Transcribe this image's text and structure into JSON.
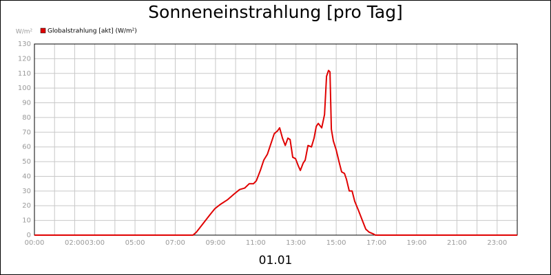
{
  "chart_data": {
    "type": "line",
    "title": "Sonneneinstrahlung [pro Tag]",
    "y_label": "W/m²",
    "x_label": "01.01",
    "x": [
      0,
      7.6,
      7.88,
      8.05,
      8.39,
      8.73,
      8.97,
      9.25,
      9.59,
      9.93,
      10.2,
      10.45,
      10.68,
      10.89,
      11.03,
      11.23,
      11.4,
      11.58,
      11.75,
      11.92,
      12.09,
      12.19,
      12.33,
      12.47,
      12.6,
      12.71,
      12.84,
      12.98,
      13.12,
      13.22,
      13.36,
      13.46,
      13.6,
      13.77,
      13.9,
      14.01,
      14.11,
      14.28,
      14.42,
      14.52,
      14.62,
      14.69,
      14.76,
      14.86,
      15.0,
      15.14,
      15.27,
      15.41,
      15.51,
      15.65,
      15.79,
      15.92,
      16.1,
      16.3,
      16.47,
      16.64,
      16.82,
      16.95,
      24
    ],
    "series": [
      {
        "name": "Globalstrahlung [akt] (W/m²)",
        "color": "#e00000",
        "values": [
          0,
          0,
          0,
          2,
          8,
          14,
          18,
          21,
          24,
          28,
          31,
          32,
          35,
          35,
          37,
          44,
          51,
          55,
          62,
          69,
          71,
          73,
          66,
          61,
          66,
          65,
          53,
          52,
          47,
          44,
          49,
          51,
          61,
          60,
          66,
          74,
          76,
          73,
          82,
          108,
          112,
          111,
          72,
          64,
          58,
          50,
          43,
          42,
          38,
          30,
          30,
          23,
          17,
          10,
          4,
          2,
          1,
          0,
          0
        ]
      }
    ],
    "xlim": [
      0,
      24
    ],
    "xticks": [
      {
        "value": 0,
        "label": "00:00"
      },
      {
        "value": 2,
        "label": "02:00"
      },
      {
        "value": 3,
        "label": "03:00"
      },
      {
        "value": 5,
        "label": "05:00"
      },
      {
        "value": 7,
        "label": "07:00"
      },
      {
        "value": 9,
        "label": "09:00"
      },
      {
        "value": 11,
        "label": "11:00"
      },
      {
        "value": 13,
        "label": "13:00"
      },
      {
        "value": 15,
        "label": "15:00"
      },
      {
        "value": 17,
        "label": "17:00"
      },
      {
        "value": 19,
        "label": "19:00"
      },
      {
        "value": 21,
        "label": "21:00"
      },
      {
        "value": 23,
        "label": "23:00"
      }
    ],
    "x_minor_ticks": [
      1,
      4,
      6,
      8,
      10,
      12,
      14,
      16,
      18,
      20,
      22,
      24
    ],
    "ylim": [
      0,
      130
    ],
    "yticks": [
      0,
      10,
      20,
      30,
      40,
      50,
      60,
      70,
      80,
      90,
      100,
      110,
      120,
      130
    ],
    "grid": true,
    "legend": "top-left"
  }
}
